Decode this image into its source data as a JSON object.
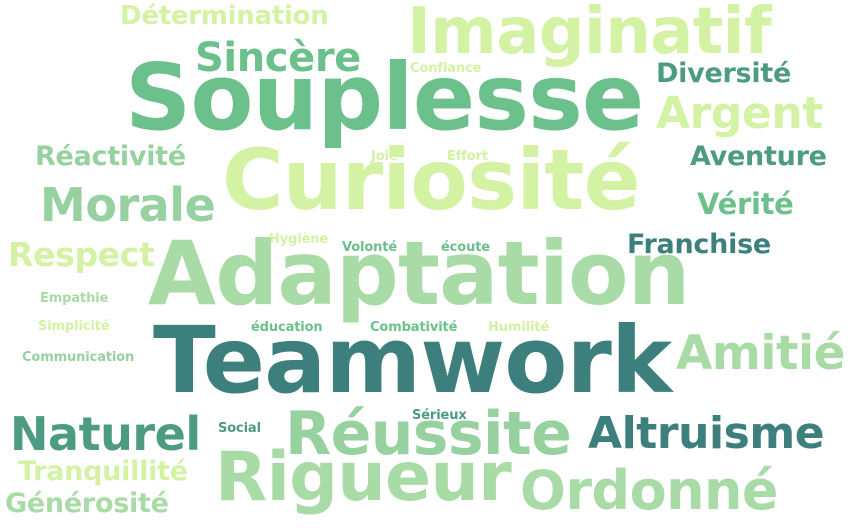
{
  "words": {
    "determination": "Détermination",
    "imaginatif": "Imaginatif",
    "sincere": "Sincère",
    "confiance": "Confiance",
    "diversite": "Diversité",
    "souplesse": "Souplesse",
    "argent": "Argent",
    "reactivite": "Réactivité",
    "joie": "Joie",
    "effort": "Effort",
    "aventure": "Aventure",
    "curiosite": "Curiosité",
    "morale": "Morale",
    "verite": "Vérité",
    "hygiene": "Hygiène",
    "franchise": "Franchise",
    "respect": "Respect",
    "volonte": "Volonté",
    "ecoute": "écoute",
    "adaptation": "Adaptation",
    "empathie": "Empathie",
    "simplicite": "Simplicité",
    "education": "éducation",
    "combativite": "Combativité",
    "humilite": "Humilité",
    "communication": "Communication",
    "teamwork": "Teamwork",
    "amitie": "Amitié",
    "serieux": "Sérieux",
    "naturel": "Naturel",
    "social": "Social",
    "reussite": "Réussite",
    "altruisme": "Altruisme",
    "tranquillite": "Tranquillité",
    "rigueur": "Rigueur",
    "ordonne": "Ordonné",
    "generosite": "Générosité"
  },
  "palette": {
    "background": "#ffffff",
    "light_yellow_green": "#d3f2a3",
    "light_green": "#a8dba5",
    "pale_green": "#97d1a0",
    "medium_green": "#6cc08b",
    "teal_green": "#4c9b82",
    "dark_teal": "#3d7f7c"
  }
}
